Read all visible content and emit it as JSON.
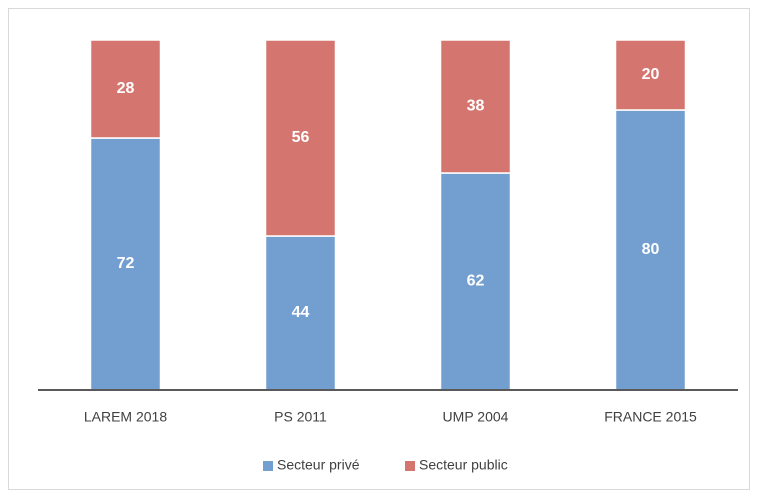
{
  "chart_data": {
    "type": "stacked-bar",
    "categories": [
      "LAREM 2018",
      "PS 2011",
      "UMP 2004",
      "FRANCE 2015"
    ],
    "series": [
      {
        "name": "Secteur privé",
        "color": "#729fcf",
        "values": [
          72,
          44,
          62,
          80
        ]
      },
      {
        "name": "Secteur public",
        "color": "#d5756f",
        "values": [
          28,
          56,
          38,
          20
        ]
      }
    ],
    "ylim": [
      0,
      100
    ],
    "legend": "bottom"
  }
}
